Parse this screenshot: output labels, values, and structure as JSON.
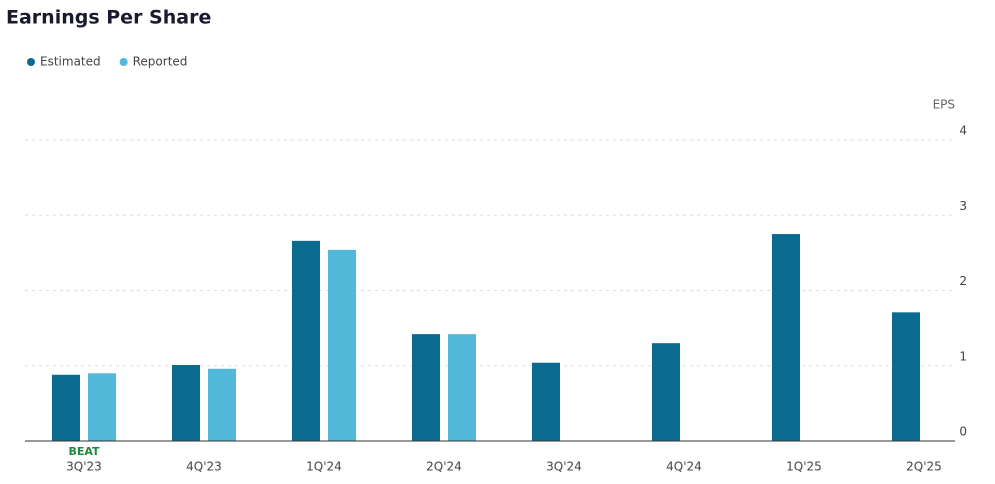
{
  "chart_data": {
    "type": "bar",
    "title": "Earnings Per Share",
    "y_label": "EPS",
    "categories": [
      "3Q'23",
      "4Q'23",
      "1Q'24",
      "2Q'24",
      "3Q'24",
      "4Q'24",
      "1Q'25",
      "2Q'25"
    ],
    "series": [
      {
        "name": "Estimated",
        "color": "#0b6a8f",
        "values": [
          0.88,
          1.01,
          2.66,
          1.42,
          1.04,
          1.3,
          2.75,
          1.71
        ]
      },
      {
        "name": "Reported",
        "color": "#52b9db",
        "values": [
          0.9,
          0.96,
          2.54,
          1.42,
          null,
          null,
          null,
          null
        ]
      }
    ],
    "annotations": [
      {
        "text": "BEAT",
        "category_index": 0,
        "color": "#1e8a3c"
      }
    ],
    "ylim": [
      0,
      4
    ],
    "yticks": [
      0,
      1,
      2,
      3,
      4
    ],
    "grid": true,
    "legend": "top-left"
  }
}
